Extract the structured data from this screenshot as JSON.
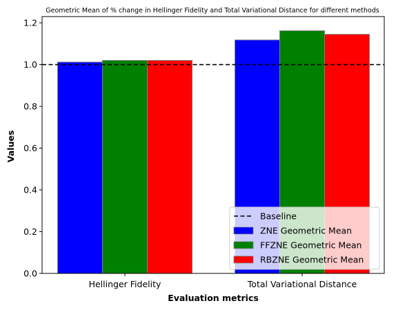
{
  "chart_data": {
    "type": "bar",
    "title": "Geometric Mean of % change in Hellinger Fidelity and Total Variational Distance for different methods",
    "xlabel": "Evaluation metrics",
    "ylabel": "Values",
    "categories": [
      "Hellinger Fidelity",
      "Total Variational Distance"
    ],
    "series": [
      {
        "name": "ZNE Geometric Mean",
        "color": "#0000ff",
        "values": [
          1.012,
          1.118
        ]
      },
      {
        "name": "FFZNE Geometric Mean",
        "color": "#008000",
        "values": [
          1.02,
          1.162
        ]
      },
      {
        "name": "RBZNE Geometric Mean",
        "color": "#ff0000",
        "values": [
          1.02,
          1.145
        ]
      }
    ],
    "baseline": {
      "name": "Baseline",
      "value": 1.0,
      "color": "#000000",
      "style": "dashed"
    },
    "ylim": [
      0,
      1.23
    ],
    "yticks": [
      "0.0",
      "0.2",
      "0.4",
      "0.6",
      "0.8",
      "1.0",
      "1.2"
    ],
    "grid": false,
    "legend_position": "bottom-right"
  }
}
